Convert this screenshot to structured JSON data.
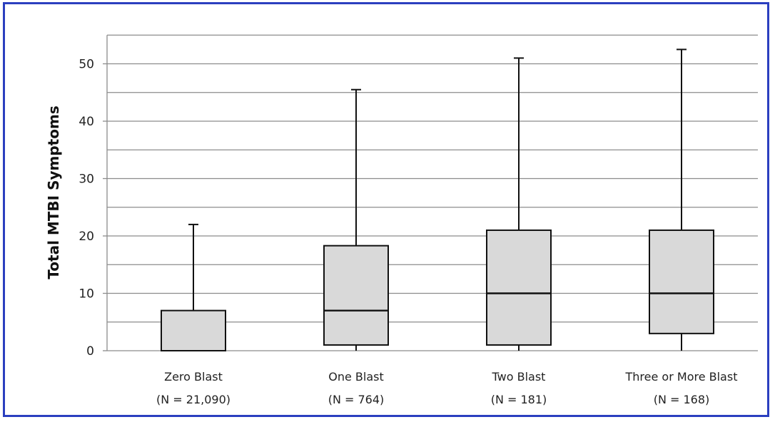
{
  "chart_data": {
    "type": "boxplot",
    "ylabel": "Total MTBI Symptoms",
    "ylim": [
      0,
      55
    ],
    "yticks": [
      0,
      10,
      20,
      30,
      40,
      50
    ],
    "grid": true,
    "colors": {
      "box_fill": "#d9d9d9",
      "stroke": "#111111",
      "grid": "#8c8c8c",
      "frame": "#2b3fbf"
    },
    "categories": [
      {
        "name": "Zero Blast",
        "n_label": "(N = 21,090)",
        "min": 0,
        "q1": 0,
        "median": 0,
        "q3": 7,
        "max": 22
      },
      {
        "name": "One Blast",
        "n_label": "(N = 764)",
        "min": 0,
        "q1": 1,
        "median": 7,
        "q3": 18.3,
        "max": 45.5
      },
      {
        "name": "Two Blast",
        "n_label": "(N = 181)",
        "min": 0,
        "q1": 1,
        "median": 10,
        "q3": 21,
        "max": 51
      },
      {
        "name": "Three or More Blast",
        "n_label": "(N = 168)",
        "min": 0,
        "q1": 3,
        "median": 10,
        "q3": 21,
        "max": 52.5
      }
    ]
  }
}
